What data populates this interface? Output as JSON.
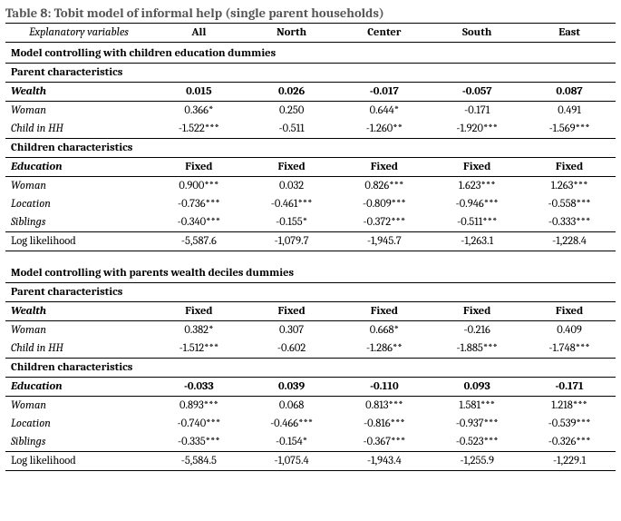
{
  "title": "Table 8: Tobit model of informal help (single parent households)",
  "columns": {
    "label": "Explanatory variables",
    "c1": "All",
    "c2": "North",
    "c3": "Center",
    "c4": "South",
    "c5": "East"
  },
  "m1": {
    "title": "Model controlling with children education dummies",
    "parent_title": "Parent characteristics",
    "wealth": {
      "label": "Wealth",
      "c1": "0.015",
      "c2": "0.026",
      "c3": "-0.017",
      "c4": "-0.057",
      "c5": "0.087"
    },
    "woman": {
      "label": "Woman",
      "c1": "0.366*",
      "c2": "0.250",
      "c3": "0.644*",
      "c4": "-0.171",
      "c5": "0.491"
    },
    "childhh": {
      "label": "Child in HH",
      "c1": "-1.522***",
      "c2": "-0.511",
      "c3": "-1.260**",
      "c4": "-1.920***",
      "c5": "-1.569***"
    },
    "child_title": "Children characteristics",
    "educ": {
      "label": "Education",
      "c1": "Fixed",
      "c2": "Fixed",
      "c3": "Fixed",
      "c4": "Fixed",
      "c5": "Fixed"
    },
    "cwoman": {
      "label": "Woman",
      "c1": "0.900***",
      "c2": "0.032",
      "c3": "0.826***",
      "c4": "1.623***",
      "c5": "1.263***"
    },
    "loc": {
      "label": "Location",
      "c1": "-0.736***",
      "c2": "-0.461***",
      "c3": "-0.809***",
      "c4": "-0.946***",
      "c5": "-0.558***"
    },
    "sib": {
      "label": "Siblings",
      "c1": "-0.340***",
      "c2": "-0.155*",
      "c3": "-0.372***",
      "c4": "-0.511***",
      "c5": "-0.333***"
    },
    "ll": {
      "label": "Log likelihood",
      "c1": "-5,587.6",
      "c2": "-1,079.7",
      "c3": "-1,945.7",
      "c4": "-1,263.1",
      "c5": "-1,228.4"
    }
  },
  "m2": {
    "title": "Model controlling with parents wealth deciles dummies",
    "parent_title": "Parent characteristics",
    "wealth": {
      "label": "Wealth",
      "c1": "Fixed",
      "c2": "Fixed",
      "c3": "Fixed",
      "c4": "Fixed",
      "c5": "Fixed"
    },
    "woman": {
      "label": "Woman",
      "c1": "0.382*",
      "c2": "0.307",
      "c3": "0.668*",
      "c4": "-0.216",
      "c5": "0.409"
    },
    "childhh": {
      "label": "Child in HH",
      "c1": "-1.512***",
      "c2": "-0.602",
      "c3": "-1.286**",
      "c4": "-1.885***",
      "c5": "-1.748***"
    },
    "child_title": "Children characteristics",
    "educ": {
      "label": "Education",
      "c1": "-0.033",
      "c2": "0.039",
      "c3": "-0.110",
      "c4": "0.093",
      "c5": "-0.171"
    },
    "cwoman": {
      "label": "Woman",
      "c1": "0.893***",
      "c2": "0.068",
      "c3": "0.813***",
      "c4": "1.581***",
      "c5": "1.218***"
    },
    "loc": {
      "label": "Location",
      "c1": "-0.740***",
      "c2": "-0.466***",
      "c3": "-0.816***",
      "c4": "-0.937***",
      "c5": "-0.539***"
    },
    "sib": {
      "label": "Siblings",
      "c1": "-0.335***",
      "c2": "-0.154*",
      "c3": "-0.367***",
      "c4": "-0.523***",
      "c5": "-0.326***"
    },
    "ll": {
      "label": "Log likelihood",
      "c1": "-5,584.5",
      "c2": "-1,075.4",
      "c3": "-1,943.4",
      "c4": "-1,255.9",
      "c5": "-1,229.1"
    }
  }
}
